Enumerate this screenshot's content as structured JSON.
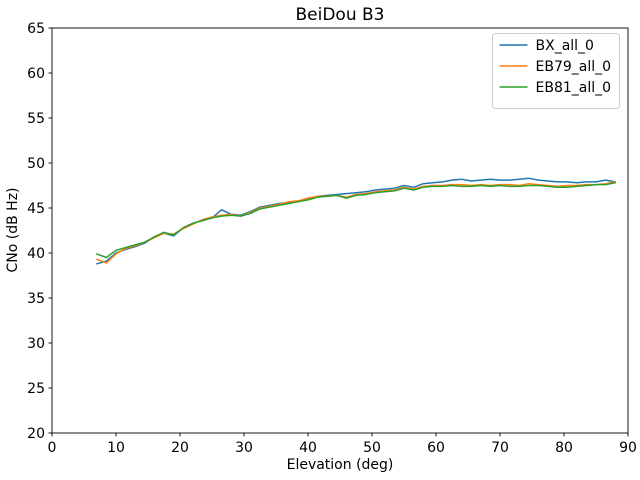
{
  "chart_data": {
    "type": "line",
    "title": "BeiDou B3",
    "xlabel": "Elevation (deg)",
    "ylabel": "CNo (dB Hz)",
    "xlim": [
      0,
      90
    ],
    "ylim": [
      20,
      65
    ],
    "xticks": [
      0,
      10,
      20,
      30,
      40,
      50,
      60,
      70,
      80,
      90
    ],
    "yticks": [
      20,
      25,
      30,
      35,
      40,
      45,
      50,
      55,
      60,
      65
    ],
    "grid": false,
    "legend_position": "upper right",
    "line_width": 1.5,
    "x": [
      7,
      8.5,
      10,
      11.5,
      13,
      14.5,
      16,
      17.5,
      19,
      20.5,
      22,
      23.5,
      25,
      26.5,
      28,
      29.5,
      31,
      32.5,
      34,
      35.5,
      37,
      38.5,
      40,
      41.5,
      43,
      44.5,
      46,
      47.5,
      49,
      50.5,
      52,
      53.5,
      55,
      56.5,
      58,
      59.5,
      61,
      62.5,
      64,
      65.5,
      67,
      68.5,
      70,
      71.5,
      73,
      74.5,
      76,
      77.5,
      79,
      80.5,
      82,
      83.5,
      85,
      86.5,
      88
    ],
    "series": [
      {
        "name": "BX_all_0",
        "color": "#1f77b4",
        "values": [
          38.8,
          39.1,
          40.0,
          40.4,
          40.7,
          41.1,
          41.8,
          42.2,
          41.9,
          42.8,
          43.3,
          43.6,
          43.9,
          44.8,
          44.3,
          44.2,
          44.6,
          45.1,
          45.3,
          45.5,
          45.6,
          45.7,
          46.0,
          46.3,
          46.4,
          46.5,
          46.6,
          46.7,
          46.8,
          47.0,
          47.1,
          47.2,
          47.5,
          47.3,
          47.7,
          47.8,
          47.9,
          48.1,
          48.2,
          48.0,
          48.1,
          48.2,
          48.1,
          48.1,
          48.2,
          48.3,
          48.1,
          48.0,
          47.9,
          47.9,
          47.8,
          47.9,
          47.9,
          48.1,
          47.9
        ]
      },
      {
        "name": "EB79_all_0",
        "color": "#ff7f0e",
        "values": [
          39.3,
          38.9,
          39.9,
          40.5,
          40.8,
          41.2,
          41.7,
          42.2,
          42.1,
          42.7,
          43.2,
          43.7,
          44.0,
          44.2,
          44.3,
          44.1,
          44.5,
          45.0,
          45.2,
          45.4,
          45.7,
          45.8,
          46.1,
          46.3,
          46.3,
          46.4,
          46.2,
          46.5,
          46.6,
          46.8,
          46.9,
          47.0,
          47.3,
          47.1,
          47.4,
          47.5,
          47.5,
          47.6,
          47.6,
          47.5,
          47.6,
          47.5,
          47.6,
          47.6,
          47.5,
          47.7,
          47.6,
          47.5,
          47.4,
          47.5,
          47.5,
          47.6,
          47.6,
          47.7,
          47.9
        ]
      },
      {
        "name": "EB81_all_0",
        "color": "#2ca02c",
        "values": [
          39.9,
          39.5,
          40.3,
          40.6,
          40.9,
          41.2,
          41.8,
          42.3,
          42.0,
          42.8,
          43.3,
          43.6,
          43.9,
          44.1,
          44.2,
          44.1,
          44.4,
          44.9,
          45.1,
          45.3,
          45.5,
          45.7,
          45.9,
          46.2,
          46.3,
          46.4,
          46.1,
          46.4,
          46.5,
          46.7,
          46.8,
          46.9,
          47.2,
          47.0,
          47.3,
          47.4,
          47.4,
          47.5,
          47.4,
          47.4,
          47.5,
          47.4,
          47.5,
          47.4,
          47.4,
          47.5,
          47.5,
          47.4,
          47.3,
          47.3,
          47.4,
          47.5,
          47.6,
          47.6,
          47.8
        ]
      }
    ]
  }
}
